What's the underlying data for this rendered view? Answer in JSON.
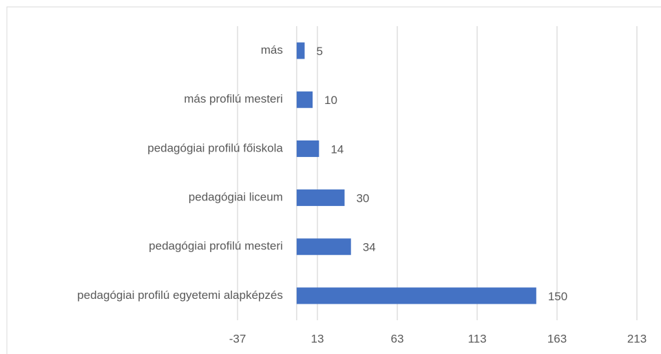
{
  "chart_data": {
    "type": "bar",
    "orientation": "horizontal",
    "categories": [
      "más",
      "más profilú mesteri",
      "pedagógiai profilú főiskola",
      "pedagógiai liceum",
      "pedagógiai profilú mesteri",
      "pedagógiai profilú egyetemi alapképzés"
    ],
    "values": [
      5,
      10,
      14,
      30,
      34,
      150
    ],
    "color": "#4472c4",
    "xlim": [
      -37,
      213
    ],
    "xticks": [
      -37,
      13,
      63,
      113,
      163,
      213
    ],
    "grid": true
  }
}
